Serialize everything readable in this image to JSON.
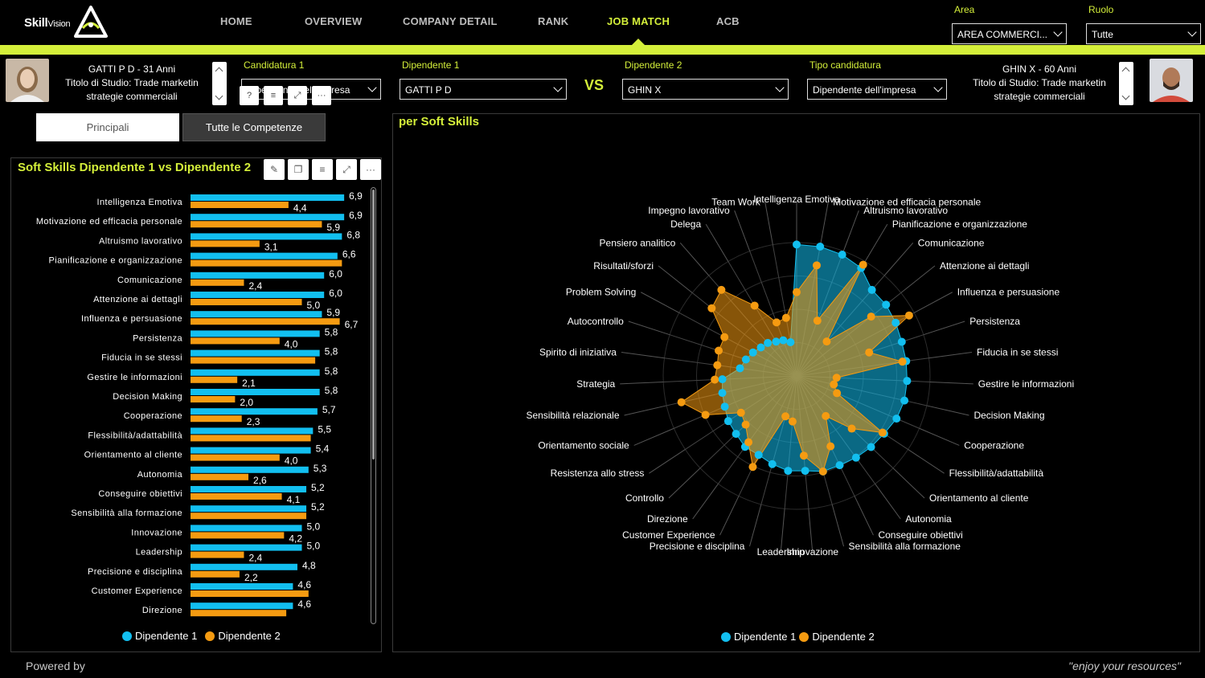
{
  "app": {
    "logo_text": "Skill",
    "logo_sub": "Vision"
  },
  "nav": [
    {
      "label": "HOME",
      "active": false
    },
    {
      "label": "OVERVIEW",
      "active": false
    },
    {
      "label": "COMPANY DETAIL",
      "active": false
    },
    {
      "label": "RANK",
      "active": false
    },
    {
      "label": "JOB MATCH",
      "active": true
    },
    {
      "label": "ACB",
      "active": false
    }
  ],
  "filters": {
    "area_label": "Area",
    "area_value": "AREA COMMERCI...",
    "ruolo_label": "Ruolo",
    "ruolo_value": "Tutte"
  },
  "person1": {
    "line1": "GATTI P D - 31 Anni",
    "line2": "Titolo di Studio: Trade marketin",
    "line3": "strategie commerciali"
  },
  "person2": {
    "line1": "GHIN X - 60 Anni",
    "line2": "Titolo di Studio: Trade marketin",
    "line3": "strategie commerciali"
  },
  "selectors": {
    "candidatura_label": "Candidatura 1",
    "candidatura_value": "Dipendente dell'impresa",
    "dip1_label": "Dipendente 1",
    "dip1_value": "GATTI P D",
    "vs": "VS",
    "dip2_label": "Dipendente 2",
    "dip2_value": "GHIN X",
    "tipo_label": "Tipo candidatura",
    "tipo_value": "Dipendente dell'impresa"
  },
  "tabs": {
    "principali": "Principali",
    "tutte": "Tutte le Competenze"
  },
  "colors": {
    "accent": "#d4ef3a",
    "dip1": "#12bff0",
    "dip2": "#f59b11"
  },
  "left_title": "Soft Skills Dipendente 1 vs Dipendente 2",
  "right_title": "per Soft Skills",
  "legend": {
    "d1": "Dipendente 1",
    "d2": "Dipendente 2"
  },
  "footer": {
    "left": "Powered by",
    "right": "\"enjoy your resources\""
  },
  "chart_data": [
    {
      "type": "bar",
      "title": "Soft Skills Dipendente 1 vs Dipendente 2",
      "categories": [
        "Intelligenza Emotiva",
        "Motivazione ed efficacia personale",
        "Altruismo lavorativo",
        "Pianificazione e organizzazione",
        "Comunicazione",
        "Attenzione ai dettagli",
        "Influenza e persuasione",
        "Persistenza",
        "Fiducia in se stessi",
        "Gestire le informazioni",
        "Decision Making",
        "Cooperazione",
        "Flessibilità/adattabilità",
        "Orientamento al cliente",
        "Autonomia",
        "Conseguire obiettivi",
        "Sensibilità alla formazione",
        "Innovazione",
        "Leadership",
        "Precisione e disciplina",
        "Customer Experience",
        "Direzione"
      ],
      "series": [
        {
          "name": "Dipendente 1",
          "values": [
            6.9,
            6.9,
            6.8,
            6.6,
            6.0,
            6.0,
            5.9,
            5.8,
            5.8,
            5.8,
            5.8,
            5.7,
            5.5,
            5.4,
            5.3,
            5.2,
            5.2,
            5.0,
            5.0,
            4.8,
            4.6,
            4.6
          ]
        },
        {
          "name": "Dipendente 2",
          "values": [
            4.4,
            5.9,
            3.1,
            6.8,
            2.4,
            5.0,
            6.7,
            4.0,
            5.6,
            2.1,
            2.0,
            2.3,
            5.4,
            4.0,
            2.6,
            4.1,
            5.2,
            4.2,
            2.4,
            2.2,
            5.3,
            4.3
          ]
        }
      ],
      "labels_d1": [
        "6,9",
        "6,9",
        "6,8",
        "6,6",
        "6,0",
        "6,0",
        "5,9",
        "5,8",
        "5,8",
        "5,8",
        "5,8",
        "5,7",
        "5,5",
        "5,4",
        "5,3",
        "5,2",
        "5,2",
        "5,0",
        "5,0",
        "4,8",
        "4,6",
        "4,6"
      ],
      "labels_d2": [
        "4,4",
        "5,9",
        "3,1",
        "",
        "2,4",
        "5,0",
        "6,7",
        "4,0",
        "",
        "2,1",
        "2,0",
        "2,3",
        "",
        "4,0",
        "2,6",
        "4,1",
        "",
        "4,2",
        "2,4",
        "2,2",
        "",
        ""
      ],
      "xlim": [
        0,
        7.3
      ]
    },
    {
      "type": "radar",
      "title": "per Soft Skills",
      "categories": [
        "Intelligenza Emotiva",
        "Motivazione ed efficacia personale",
        "Altruismo lavorativo",
        "Pianificazione e organizzazione",
        "Comunicazione",
        "Attenzione ai dettagli",
        "Influenza e persuasione",
        "Persistenza",
        "Fiducia in se stessi",
        "Gestire le informazioni",
        "Decision Making",
        "Cooperazione",
        "Flessibilità/adattabilità",
        "Orientamento al cliente",
        "Autonomia",
        "Conseguire obiettivi",
        "Sensibilità alla formazione",
        "Innovazione",
        "Leadership",
        "Precisione e disciplina",
        "Customer Experience",
        "Direzione",
        "Controllo",
        "Resistenza allo stress",
        "Orientamento sociale",
        "Sensibilità relazionale",
        "Strategia",
        "Spirito di iniziativa",
        "Autocontrollo",
        "Problem Solving",
        "Risultati/sforzi",
        "Pensiero analitico",
        "Delega",
        "Impegno lavorativo",
        "Team Work"
      ],
      "series": [
        {
          "name": "Dipendente 1",
          "values": [
            6.9,
            6.9,
            6.8,
            6.6,
            6.0,
            6.0,
            5.9,
            5.8,
            5.8,
            5.8,
            5.8,
            5.7,
            5.5,
            5.4,
            5.3,
            5.2,
            5.2,
            5.0,
            5.0,
            4.8,
            4.6,
            4.6,
            4.4,
            4.3,
            4.1,
            4.0,
            3.9,
            3.0,
            2.8,
            2.6,
            2.4,
            2.3,
            2.1,
            2.0,
            1.8
          ]
        },
        {
          "name": "Dipendente 2",
          "values": [
            4.4,
            5.9,
            3.1,
            6.8,
            2.4,
            5.0,
            6.7,
            4.0,
            5.6,
            2.1,
            2.0,
            2.3,
            5.4,
            4.0,
            2.6,
            4.1,
            5.2,
            4.2,
            2.4,
            2.2,
            5.3,
            4.3,
            3.7,
            3.5,
            5.2,
            6.2,
            4.3,
            4.2,
            4.3,
            4.3,
            5.7,
            6.0,
            4.3,
            3.0,
            3.1
          ]
        }
      ],
      "rlim": [
        0,
        7
      ]
    }
  ]
}
